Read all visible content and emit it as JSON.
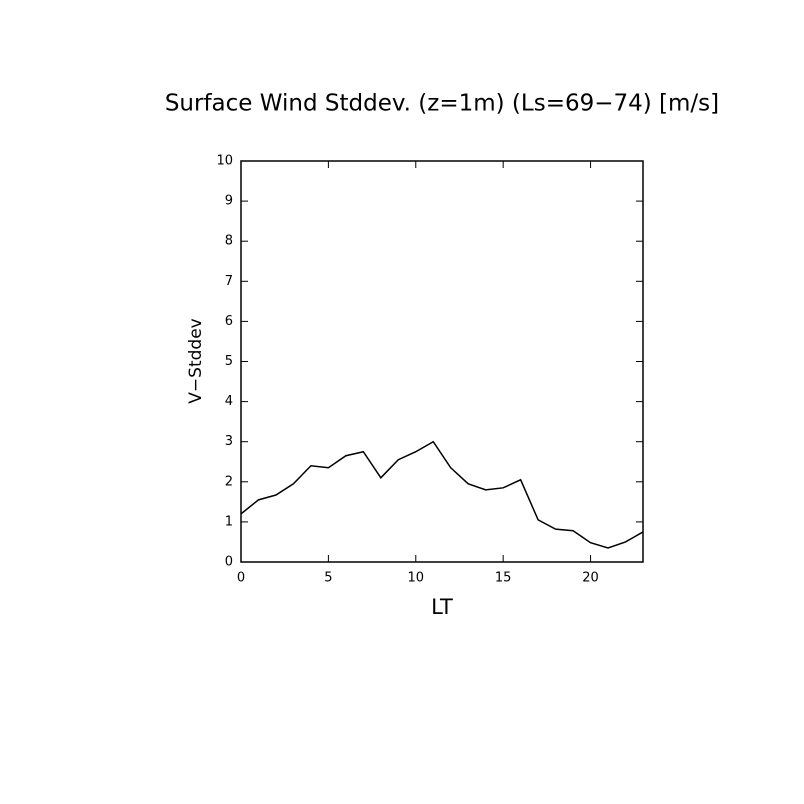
{
  "chart_data": {
    "type": "line",
    "title": "Surface Wind Stddev. (z=1m) (Ls=69−74) [m/s]",
    "x_label": "LT",
    "y_label": "V−Stddev",
    "x": [
      0,
      1,
      2,
      3,
      4,
      5,
      6,
      7,
      8,
      9,
      10,
      11,
      12,
      13,
      14,
      15,
      16,
      17,
      18,
      19,
      20,
      21,
      22,
      23
    ],
    "series": [
      {
        "color": "#000000",
        "values": [
          1.2,
          1.55,
          1.67,
          1.95,
          2.4,
          2.35,
          2.65,
          2.75,
          2.1,
          2.55,
          2.75,
          3.0,
          2.35,
          1.95,
          1.8,
          1.85,
          2.05,
          1.05,
          0.82,
          0.78,
          0.48,
          0.35,
          0.5,
          0.75
        ]
      }
    ],
    "xlim": [
      0,
      23
    ],
    "xticks": [
      0,
      5,
      10,
      15,
      20
    ],
    "ylim": [
      0,
      10
    ],
    "yticks": [
      0,
      1,
      2,
      3,
      4,
      5,
      6,
      7,
      8,
      9,
      10
    ]
  }
}
